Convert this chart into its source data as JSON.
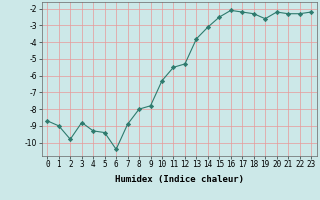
{
  "title": "",
  "xlabel": "Humidex (Indice chaleur)",
  "ylabel": "",
  "x": [
    0,
    1,
    2,
    3,
    4,
    5,
    6,
    7,
    8,
    9,
    10,
    11,
    12,
    13,
    14,
    15,
    16,
    17,
    18,
    19,
    20,
    21,
    22,
    23
  ],
  "y": [
    -8.7,
    -9.0,
    -9.8,
    -8.8,
    -9.3,
    -9.4,
    -10.4,
    -8.9,
    -8.0,
    -7.8,
    -6.3,
    -5.5,
    -5.3,
    -3.8,
    -3.1,
    -2.5,
    -2.1,
    -2.2,
    -2.3,
    -2.6,
    -2.2,
    -2.3,
    -2.3,
    -2.2
  ],
  "line_color": "#2e7b6e",
  "marker": "D",
  "marker_size": 2.2,
  "bg_color": "#cce8e8",
  "grid_color": "#e89898",
  "ylim": [
    -10.8,
    -1.6
  ],
  "xlim": [
    -0.5,
    23.5
  ],
  "yticks": [
    -2,
    -3,
    -4,
    -5,
    -6,
    -7,
    -8,
    -9,
    -10
  ],
  "xticks": [
    0,
    1,
    2,
    3,
    4,
    5,
    6,
    7,
    8,
    9,
    10,
    11,
    12,
    13,
    14,
    15,
    16,
    17,
    18,
    19,
    20,
    21,
    22,
    23
  ],
  "tick_fontsize": 5.5,
  "xlabel_fontsize": 6.5
}
